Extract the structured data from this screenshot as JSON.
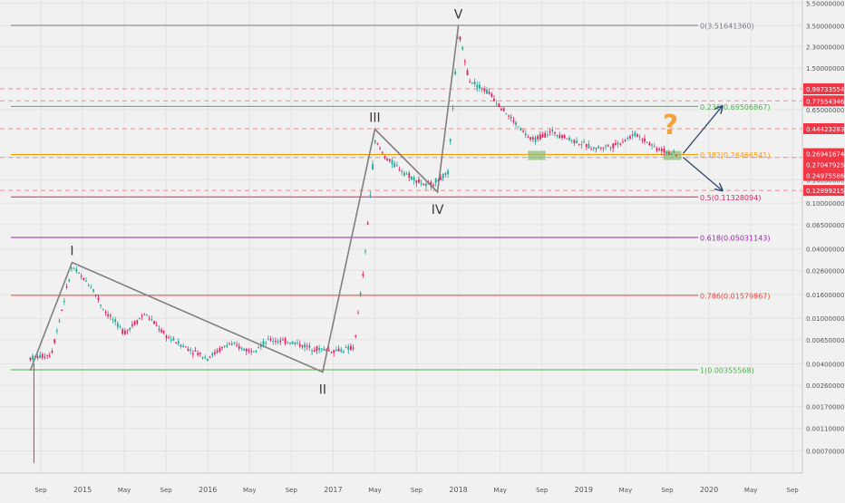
{
  "chart_data": {
    "type": "line",
    "title": "",
    "xlabel": "",
    "ylabel": "",
    "scale": "log",
    "ylim": [
      0.0003,
      5.5
    ],
    "xlim": [
      "2014-07",
      "2020-12"
    ],
    "grid": true,
    "colors": {
      "up": "#26a69a",
      "down": "#e91e63",
      "wave": "#808080",
      "annotation": "#f6a23c",
      "arrow": "#2b4a6d",
      "zone": "#8fbf7a"
    },
    "x_ticks": [
      {
        "label": "Sep",
        "date": "2014-09"
      },
      {
        "label": "2015",
        "date": "2015-01"
      },
      {
        "label": "May",
        "date": "2015-05"
      },
      {
        "label": "Sep",
        "date": "2015-09"
      },
      {
        "label": "2016",
        "date": "2016-01"
      },
      {
        "label": "May",
        "date": "2016-05"
      },
      {
        "label": "Sep",
        "date": "2016-09"
      },
      {
        "label": "2017",
        "date": "2017-01"
      },
      {
        "label": "May",
        "date": "2017-05"
      },
      {
        "label": "Sep",
        "date": "2017-09"
      },
      {
        "label": "2018",
        "date": "2018-01"
      },
      {
        "label": "May",
        "date": "2018-05"
      },
      {
        "label": "Sep",
        "date": "2018-09"
      },
      {
        "label": "2019",
        "date": "2019-01"
      },
      {
        "label": "May",
        "date": "2019-05"
      },
      {
        "label": "Sep",
        "date": "2019-09"
      },
      {
        "label": "2020",
        "date": "2020-01"
      },
      {
        "label": "May",
        "date": "2020-05"
      },
      {
        "label": "Sep",
        "date": "2020-09"
      }
    ],
    "y_ticks": [
      "5.50000000",
      "3.50000000",
      "2.30000000",
      "1.50000000",
      "0.65000000",
      "0.25000000",
      "0.16000000",
      "0.10000000",
      "0.06500000",
      "0.04000000",
      "0.02600000",
      "0.01600000",
      "0.01000000",
      "0.00650000",
      "0.00400000",
      "0.00260000",
      "0.00170000",
      "0.00110000",
      "0.00070000",
      "0.00042000"
    ],
    "fib_levels": [
      {
        "ratio": "0",
        "label": "0(3.51641360)",
        "value": 3.5164136,
        "color": "#787b86"
      },
      {
        "ratio": "0.236",
        "label": "0.236(0.69506867)",
        "value": 0.69506867,
        "color": "#4caf50"
      },
      {
        "ratio": "0.382",
        "label": "0.382(0.26466541)",
        "value": 0.26466541,
        "color": "#ff9800"
      },
      {
        "ratio": "0.5",
        "label": "0.5(0.11328094)",
        "value": 0.11328094,
        "color": "#e91e63"
      },
      {
        "ratio": "0.618",
        "label": "0.618(0.05031143)",
        "value": 0.05031143,
        "color": "#9c27b0"
      },
      {
        "ratio": "0.786",
        "label": "0.786(0.01579867)",
        "value": 0.01579867,
        "color": "#f44336"
      },
      {
        "ratio": "1",
        "label": "1(0.00355568)",
        "value": 0.00355568,
        "color": "#4caf50"
      }
    ],
    "price_labels": [
      {
        "text": "0.98733554",
        "value": 0.98733554,
        "bg": "#f23645"
      },
      {
        "text": "0.77554346",
        "value": 0.77554346,
        "bg": "#f23645"
      },
      {
        "text": "0.44423283",
        "value": 0.44423283,
        "bg": "#f23645"
      },
      {
        "text": "0.26941674",
        "value": 0.26941674,
        "bg": "#f23645"
      },
      {
        "text": "0.27047925",
        "value": 0.27047925,
        "bg": "#f23645"
      },
      {
        "text": "0.24975586",
        "value": 0.24975586,
        "bg": "#f23645"
      },
      {
        "text": "0.12899215",
        "value": 0.12899215,
        "bg": "#f23645"
      }
    ],
    "dashed_levels": [
      0.98733554,
      0.77554346,
      0.44423283,
      0.24975586,
      0.12899215
    ],
    "waves": [
      {
        "label": "I",
        "date": "2014-12",
        "value": 0.0305
      },
      {
        "label": "II",
        "date": "2016-12",
        "value": 0.0034
      },
      {
        "label": "III",
        "date": "2017-05",
        "value": 0.44
      },
      {
        "label": "IV",
        "date": "2017-11",
        "value": 0.125
      },
      {
        "label": "V",
        "date": "2018-01",
        "value": 3.5
      }
    ],
    "wave_path": [
      {
        "date": "2014-08",
        "value": 0.0035
      },
      {
        "date": "2014-12",
        "value": 0.0305
      },
      {
        "date": "2016-12",
        "value": 0.0034
      },
      {
        "date": "2017-05",
        "value": 0.44
      },
      {
        "date": "2017-11",
        "value": 0.125
      },
      {
        "date": "2018-01",
        "value": 3.5
      }
    ],
    "price_path": [
      {
        "date": "2014-08",
        "value": 0.0045
      },
      {
        "date": "2014-10",
        "value": 0.0048
      },
      {
        "date": "2014-12",
        "value": 0.028
      },
      {
        "date": "2015-02",
        "value": 0.018
      },
      {
        "date": "2015-03",
        "value": 0.012
      },
      {
        "date": "2015-05",
        "value": 0.0075
      },
      {
        "date": "2015-07",
        "value": 0.011
      },
      {
        "date": "2015-09",
        "value": 0.007
      },
      {
        "date": "2015-11",
        "value": 0.0055
      },
      {
        "date": "2016-01",
        "value": 0.0045
      },
      {
        "date": "2016-03",
        "value": 0.006
      },
      {
        "date": "2016-05",
        "value": 0.0052
      },
      {
        "date": "2016-07",
        "value": 0.0065
      },
      {
        "date": "2016-09",
        "value": 0.0062
      },
      {
        "date": "2016-11",
        "value": 0.0055
      },
      {
        "date": "2017-01",
        "value": 0.0052
      },
      {
        "date": "2017-03",
        "value": 0.0055
      },
      {
        "date": "2017-04",
        "value": 0.03
      },
      {
        "date": "2017-05",
        "value": 0.35
      },
      {
        "date": "2017-06",
        "value": 0.25
      },
      {
        "date": "2017-08",
        "value": 0.18
      },
      {
        "date": "2017-10",
        "value": 0.14
      },
      {
        "date": "2017-12",
        "value": 0.18
      },
      {
        "date": "2018-01",
        "value": 3.2
      },
      {
        "date": "2018-02",
        "value": 1.2
      },
      {
        "date": "2018-04",
        "value": 0.9
      },
      {
        "date": "2018-06",
        "value": 0.55
      },
      {
        "date": "2018-08",
        "value": 0.35
      },
      {
        "date": "2018-10",
        "value": 0.42
      },
      {
        "date": "2018-12",
        "value": 0.35
      },
      {
        "date": "2019-02",
        "value": 0.3
      },
      {
        "date": "2019-04",
        "value": 0.32
      },
      {
        "date": "2019-06",
        "value": 0.4
      },
      {
        "date": "2019-08",
        "value": 0.3
      },
      {
        "date": "2019-10",
        "value": 0.26
      }
    ],
    "spike_low": {
      "date": "2014-08",
      "value": 0.00055
    },
    "support_zones": [
      {
        "from": "2018-08",
        "to": "2018-09",
        "value": 0.26
      },
      {
        "from": "2019-09",
        "to": "2019-10",
        "value": 0.26
      }
    ],
    "question_mark": {
      "text": "?",
      "date": "2019-10",
      "value": 0.55
    },
    "scenario_arrows": [
      {
        "from_date": "2019-10",
        "from_value": 0.27,
        "to_date": "2020-01",
        "to_value": 0.69
      },
      {
        "from_date": "2019-10",
        "from_value": 0.25,
        "to_date": "2020-01",
        "to_value": 0.13
      }
    ]
  }
}
